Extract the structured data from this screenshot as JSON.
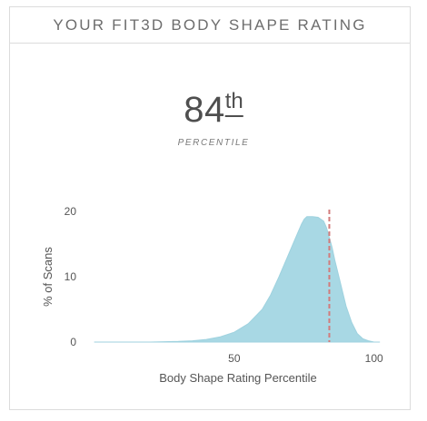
{
  "header": {
    "title": "YOUR FIT3D BODY SHAPE RATING"
  },
  "score": {
    "value": "84",
    "suffix": "th",
    "caption": "PERCENTILE"
  },
  "colors": {
    "area": "#a8d8e4",
    "area_edge": "#9fd2df",
    "marker": "#d27b7b"
  },
  "chart_data": {
    "type": "area",
    "xlabel": "Body Shape Rating Percentile",
    "ylabel": "% of Scans",
    "xlim": [
      0,
      104
    ],
    "ylim": [
      0,
      20
    ],
    "xticks": [
      50,
      100
    ],
    "yticks": [
      0,
      10,
      20
    ],
    "marker": {
      "x": 84
    },
    "x": [
      0,
      10,
      20,
      30,
      35,
      40,
      45,
      50,
      55,
      60,
      63,
      66,
      69,
      72,
      74,
      75,
      76,
      78,
      80,
      82,
      83,
      84,
      85,
      86,
      88,
      90,
      92,
      94,
      96,
      98,
      100,
      102
    ],
    "y": [
      0,
      0,
      0,
      0.1,
      0.2,
      0.4,
      0.8,
      1.5,
      2.8,
      5,
      7.2,
      10,
      13,
      16,
      18,
      18.8,
      19.2,
      19.2,
      19.1,
      18.5,
      17.5,
      16,
      14.5,
      12.5,
      9,
      5.5,
      3,
      1.3,
      0.5,
      0.2,
      0,
      0
    ]
  }
}
